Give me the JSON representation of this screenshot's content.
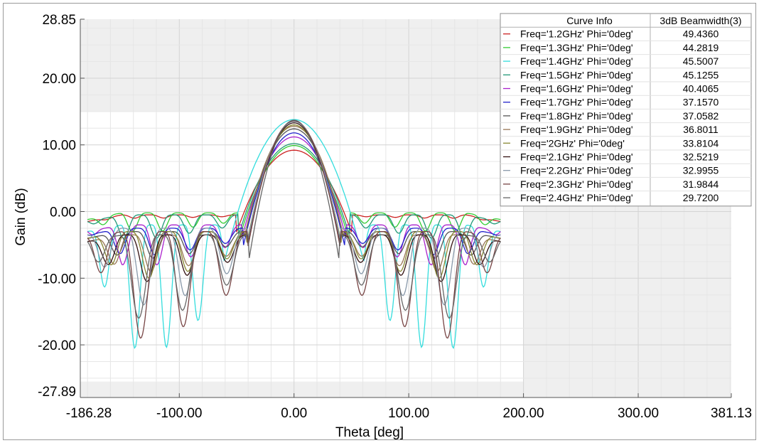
{
  "chart_data": {
    "type": "line",
    "xlabel": "Theta [deg]",
    "ylabel": "Gain (dB)",
    "xlim": [
      -186.28,
      381.13
    ],
    "ylim": [
      -27.89,
      28.85
    ],
    "x_tick_labels": [
      "-186.28",
      "-100.00",
      "0.00",
      "100.00",
      "200.00",
      "300.00",
      "381.13"
    ],
    "x_ticks": [
      -186.28,
      -100,
      0,
      100,
      200,
      300,
      381.13
    ],
    "y_tick_labels": [
      "28.85",
      "20.00",
      "10.00",
      "0.00",
      "-10.00",
      "-20.00",
      "-27.89"
    ],
    "y_ticks": [
      28.85,
      20,
      10,
      0,
      -10,
      -20,
      -27.89
    ],
    "grid": true,
    "legend": {
      "placement": "top-right",
      "header_curve": "Curve Info",
      "header_value": "3dB Beamwidth(3)"
    },
    "series": [
      {
        "name": "Freq='1.2GHz' Phi='0deg'",
        "beamwidth": "49.4360",
        "color": "#cc2222",
        "peak": 9.2,
        "nulls": [
          -50,
          -118
        ],
        "floor": -1,
        "side": -0.5
      },
      {
        "name": "Freq='1.3GHz' Phi='0deg'",
        "beamwidth": "44.2819",
        "color": "#33cc33",
        "peak": 9.9,
        "nulls": [
          -48,
          -110
        ],
        "floor": -3,
        "side": -0.2
      },
      {
        "name": "Freq='1.4GHz' Phi='0deg'",
        "beamwidth": "45.5007",
        "color": "#33dddd",
        "peak": 13.8,
        "nulls": [
          -42,
          -92,
          -133
        ],
        "floor": -20.5,
        "side": -2
      },
      {
        "name": "Freq='1.5GHz' Phi='0deg'",
        "beamwidth": "45.1255",
        "color": "#229977",
        "peak": 10.2,
        "nulls": [
          -48,
          -110
        ],
        "floor": -4,
        "side": -0.5
      },
      {
        "name": "Freq='1.6GHz' Phi='0deg'",
        "beamwidth": "40.4065",
        "color": "#aa22cc",
        "peak": 11.2,
        "nulls": [
          -45,
          -105
        ],
        "floor": -8,
        "side": -2
      },
      {
        "name": "Freq='1.7GHz' Phi='0deg'",
        "beamwidth": "37.1570",
        "color": "#2222cc",
        "peak": 11.8,
        "nulls": [
          -44,
          -103
        ],
        "floor": -6.5,
        "side": -2.5
      },
      {
        "name": "Freq='1.8GHz' Phi='0deg'",
        "beamwidth": "37.0582",
        "color": "#555555",
        "peak": 12.4,
        "nulls": [
          -43,
          -100
        ],
        "floor": -7,
        "side": -3
      },
      {
        "name": "Freq='1.9GHz' Phi='0deg'",
        "beamwidth": "36.8011",
        "color": "#997755",
        "peak": 12.8,
        "nulls": [
          -42,
          -98,
          -130
        ],
        "floor": -9,
        "side": -3.5
      },
      {
        "name": "Freq='2GHz' Phi='0deg'",
        "beamwidth": "33.8104",
        "color": "#888833",
        "peak": 13.0,
        "nulls": [
          -41,
          -96,
          -128
        ],
        "floor": -10,
        "side": -3
      },
      {
        "name": "Freq='2.1GHz' Phi='0deg'",
        "beamwidth": "32.5219",
        "color": "#331111",
        "peak": 13.3,
        "nulls": [
          -40,
          -95,
          -125
        ],
        "floor": -10.5,
        "side": -3.5
      },
      {
        "name": "Freq='2.2GHz' Phi='0deg'",
        "beamwidth": "32.9955",
        "color": "#8899aa",
        "peak": 13.5,
        "nulls": [
          -40,
          -93,
          -125
        ],
        "floor": -14,
        "side": -2.5
      },
      {
        "name": "Freq='2.3GHz' Phi='0deg'",
        "beamwidth": "31.9844",
        "color": "#774444",
        "peak": 13.6,
        "nulls": [
          -40,
          -92,
          -113
        ],
        "floor": -19,
        "side": -3
      },
      {
        "name": "Freq='2.4GHz' Phi='0deg'",
        "beamwidth": "29.7200",
        "color": "#666666",
        "peak": 13.7,
        "nulls": [
          -39,
          -90,
          -125
        ],
        "floor": -16,
        "side": -3.5
      }
    ]
  }
}
